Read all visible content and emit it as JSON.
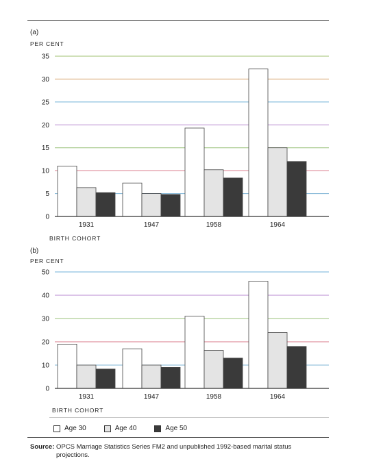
{
  "panels": [
    {
      "panel_label": "(a)",
      "unit_label": "PER CENT",
      "x_axis_title": "BIRTH COHORT"
    },
    {
      "panel_label": "(b)",
      "unit_label": "PER CENT",
      "x_axis_title": "BIRTH COHORT"
    }
  ],
  "legend": {
    "items": [
      {
        "label": "Age 30",
        "color": "#ffffff"
      },
      {
        "label": "Age 40",
        "color": "#e4e4e4"
      },
      {
        "label": "Age 50",
        "color": "#3a3a3a"
      }
    ]
  },
  "source": {
    "prefix": "Source:",
    "line1": "OPCS Marriage Statistics Series FM2 and unpublished 1992-based marital status",
    "line2": "projections."
  },
  "gridline_colors": [
    "#c8a84a",
    "#7fb5d6",
    "#d97a8a",
    "#9ac27a",
    "#b88ad0",
    "#6fb0d8",
    "#d6a06a",
    "#a0c070"
  ],
  "chart_data": [
    {
      "type": "bar",
      "categories": [
        "1931",
        "1947",
        "1958",
        "1964"
      ],
      "series": [
        {
          "name": "Age 30",
          "values": [
            11,
            7.3,
            19.3,
            32.2
          ]
        },
        {
          "name": "Age 40",
          "values": [
            6.3,
            5,
            10.2,
            15
          ]
        },
        {
          "name": "Age 50",
          "values": [
            5.2,
            4.8,
            8.4,
            12
          ]
        }
      ],
      "title": "",
      "xlabel": "BIRTH COHORT",
      "ylabel": "PER CENT",
      "ylim": [
        0,
        35
      ],
      "yticks": [
        "0",
        "5",
        "10",
        "15",
        "20",
        "25",
        "30",
        "35"
      ],
      "grid": true,
      "legend": "bottom"
    },
    {
      "type": "bar",
      "categories": [
        "1931",
        "1947",
        "1958",
        "1964"
      ],
      "series": [
        {
          "name": "Age 30",
          "values": [
            19,
            17,
            31,
            46
          ]
        },
        {
          "name": "Age 40",
          "values": [
            10,
            10,
            16.3,
            24
          ]
        },
        {
          "name": "Age 50",
          "values": [
            8.3,
            9,
            13,
            18
          ]
        }
      ],
      "title": "",
      "xlabel": "BIRTH COHORT",
      "ylabel": "PER CENT",
      "ylim": [
        0,
        50
      ],
      "yticks": [
        "0",
        "10",
        "20",
        "30",
        "40",
        "50"
      ],
      "grid": true,
      "legend": "bottom"
    }
  ]
}
